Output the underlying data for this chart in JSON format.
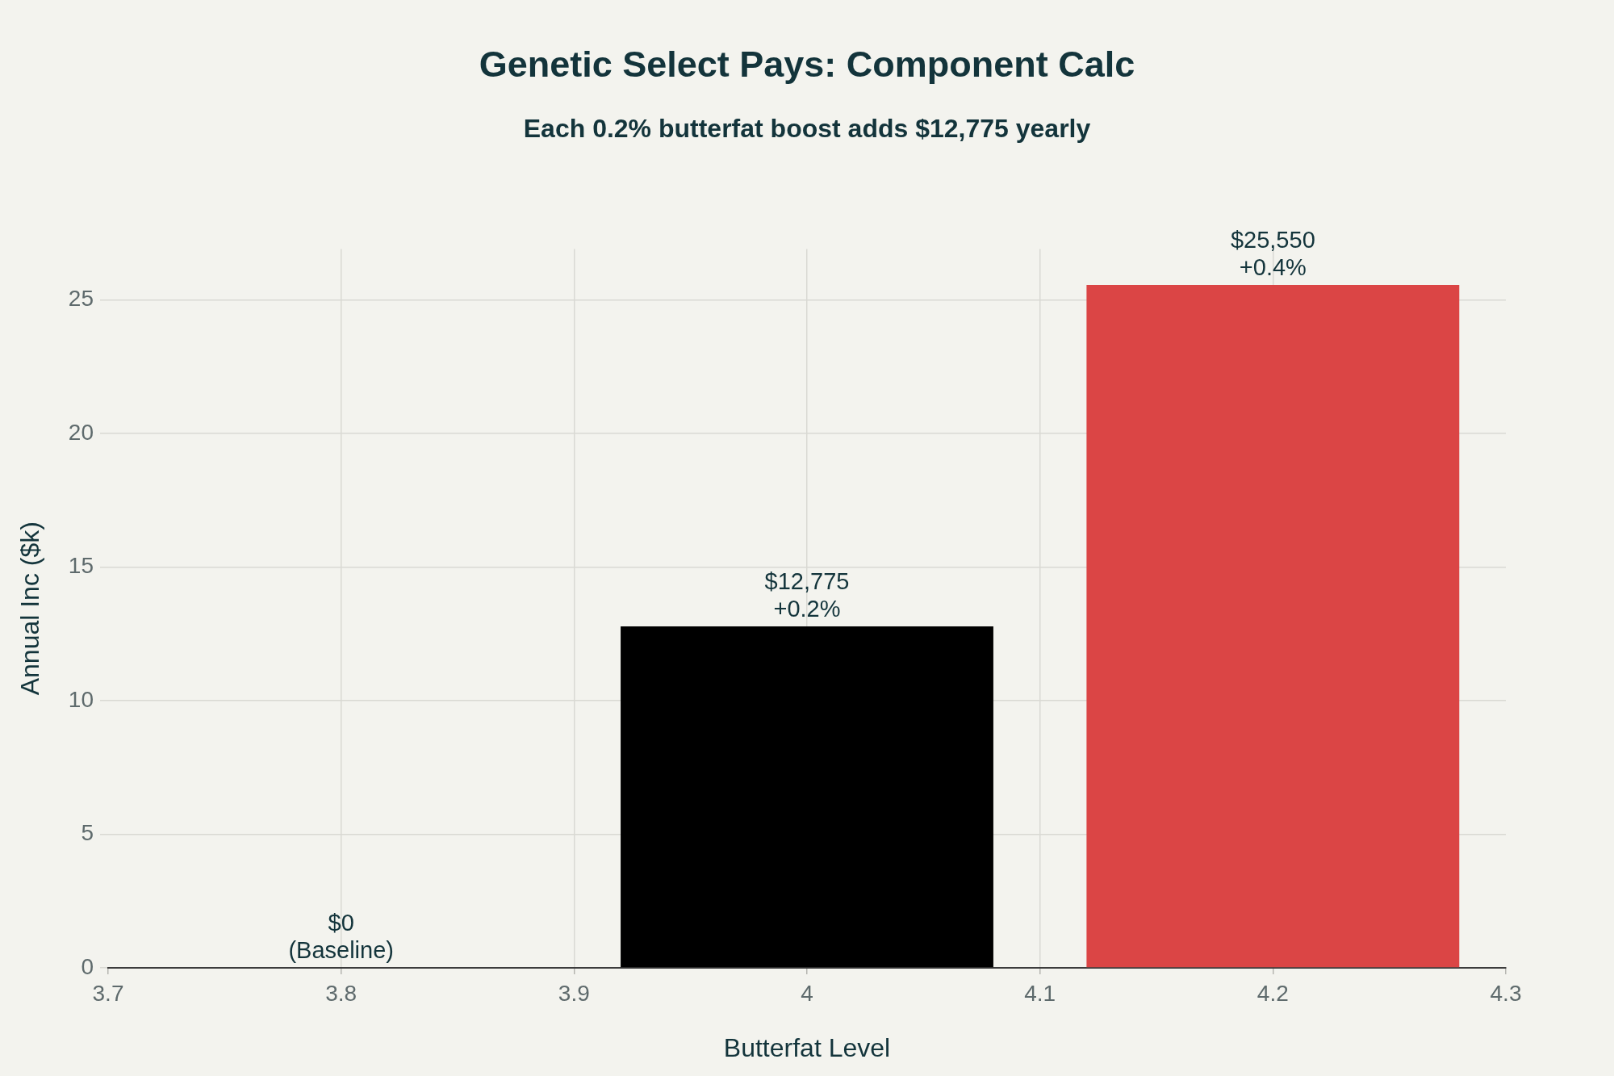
{
  "chart_data": {
    "type": "bar",
    "title": "Genetic Select Pays: Component Calc",
    "subtitle": "Each 0.2% butterfat boost adds $12,775 yearly",
    "xlabel": "Butterfat Level",
    "ylabel": "Annual Inc ($k)",
    "x": [
      3.8,
      4.0,
      4.2
    ],
    "values": [
      0,
      12.775,
      25.55
    ],
    "colors": [
      "#000000",
      "#000000",
      "#db4545"
    ],
    "annotations": [
      {
        "text": "$0\n(Baseline)",
        "x": 3.8,
        "y": 0
      },
      {
        "text": "$12,775\n+0.2%",
        "x": 4.0,
        "y": 12.775
      },
      {
        "text": "$25,550\n+0.4%",
        "x": 4.2,
        "y": 25.55
      }
    ],
    "xlim": [
      3.7,
      4.3
    ],
    "xticks": [
      3.7,
      3.8,
      3.9,
      4,
      4.1,
      4.2,
      4.3
    ],
    "ylim": [
      0,
      26.9
    ],
    "yticks": [
      0,
      5,
      10,
      15,
      20,
      25
    ],
    "grid": true
  }
}
